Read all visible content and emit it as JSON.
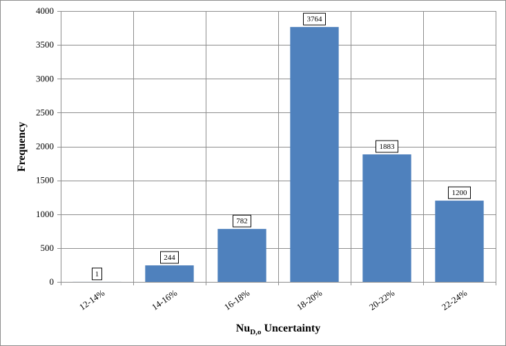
{
  "chart_data": {
    "type": "bar",
    "categories": [
      "12-14%",
      "14-16%",
      "16-18%",
      "18-20%",
      "20-22%",
      "22-24%"
    ],
    "values": [
      1,
      244,
      782,
      3764,
      1883,
      1200
    ],
    "data_labels": [
      "1",
      "244",
      "782",
      "3764",
      "1883",
      "1200"
    ],
    "ylabel": "Frequency",
    "xlabel": {
      "main": "Nu",
      "subscript": "D,o",
      "suffix": " Uncertainty"
    },
    "ylim": [
      0,
      4000
    ],
    "yticks": [
      0,
      500,
      1000,
      1500,
      2000,
      2500,
      3000,
      3500,
      4000
    ],
    "grid": true,
    "legend": "none",
    "bar_color": "#4f81bd",
    "grid_color": "#8c8c8c"
  }
}
